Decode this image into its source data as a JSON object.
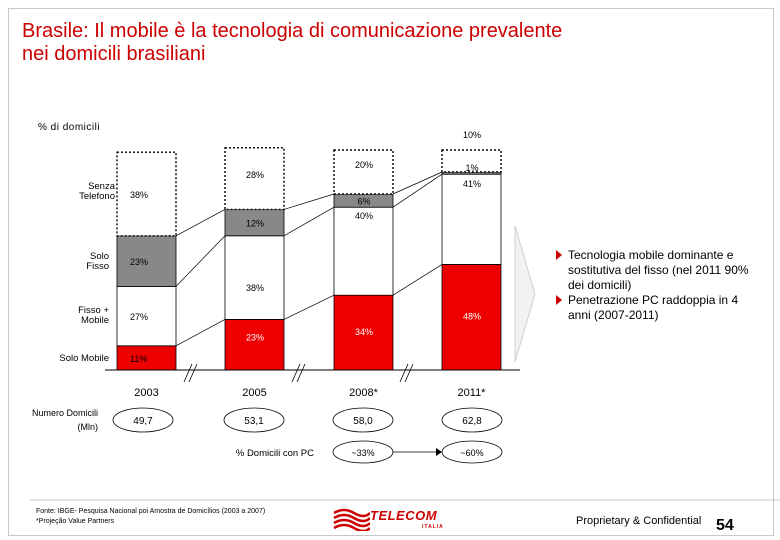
{
  "title": {
    "line1": "Brasile: Il mobile è la tecnologia di comunicazione prevalente",
    "line2": "nei domicili brasiliani"
  },
  "unit_label": "% di domicili",
  "chart_data": {
    "type": "bar",
    "stacked": true,
    "categories": [
      "2003",
      "2005",
      "2008*",
      "2011*"
    ],
    "series": [
      {
        "name": "Solo Mobile",
        "color": "#ee0000",
        "values": [
          11,
          23,
          34,
          48
        ]
      },
      {
        "name": "Fisso + Mobile",
        "color": "#ffffff",
        "values": [
          27,
          38,
          40,
          41
        ]
      },
      {
        "name": "Solo Fisso",
        "color": "#888888",
        "values": [
          23,
          12,
          6,
          1
        ]
      },
      {
        "name": "Senza Telefono",
        "color": "#ffffff",
        "values": [
          38,
          28,
          20,
          10
        ]
      }
    ],
    "value_labels": [
      [
        "11%",
        "27%",
        "23%",
        "38%"
      ],
      [
        "23%",
        "38%",
        "12%",
        "28%"
      ],
      [
        "34%",
        "40%",
        "6%",
        "20%"
      ],
      [
        "48%",
        "41%",
        "1%",
        "10%"
      ]
    ],
    "ylim": [
      0,
      100
    ],
    "xlabel": "",
    "ylabel": "% di domicili"
  },
  "households": {
    "label": "Numero Domicili (Mln)",
    "values": [
      "49,7",
      "53,1",
      "58,0",
      "62,8"
    ]
  },
  "pc": {
    "label": "% Domicili con PC",
    "values": [
      "~33%",
      "~60%"
    ]
  },
  "bullets": [
    "Tecnologia mobile dominante e sostitutiva del fisso (nel 2011 90% dei domicili)",
    "Penetrazione PC raddoppia in 4 anni (2007-2011)"
  ],
  "footer": {
    "source": "Fonte: IBGE- Pesquisa Nacional poi Amostra de Domicílios (2003 a 2007)",
    "note": "*Projeção Value Partners"
  },
  "logo": {
    "text": "TELECOM",
    "sub": "ITALIA"
  },
  "confidential": "Proprietary & Confidential",
  "page_number": "54",
  "colors": {
    "accent": "#cc0000"
  }
}
